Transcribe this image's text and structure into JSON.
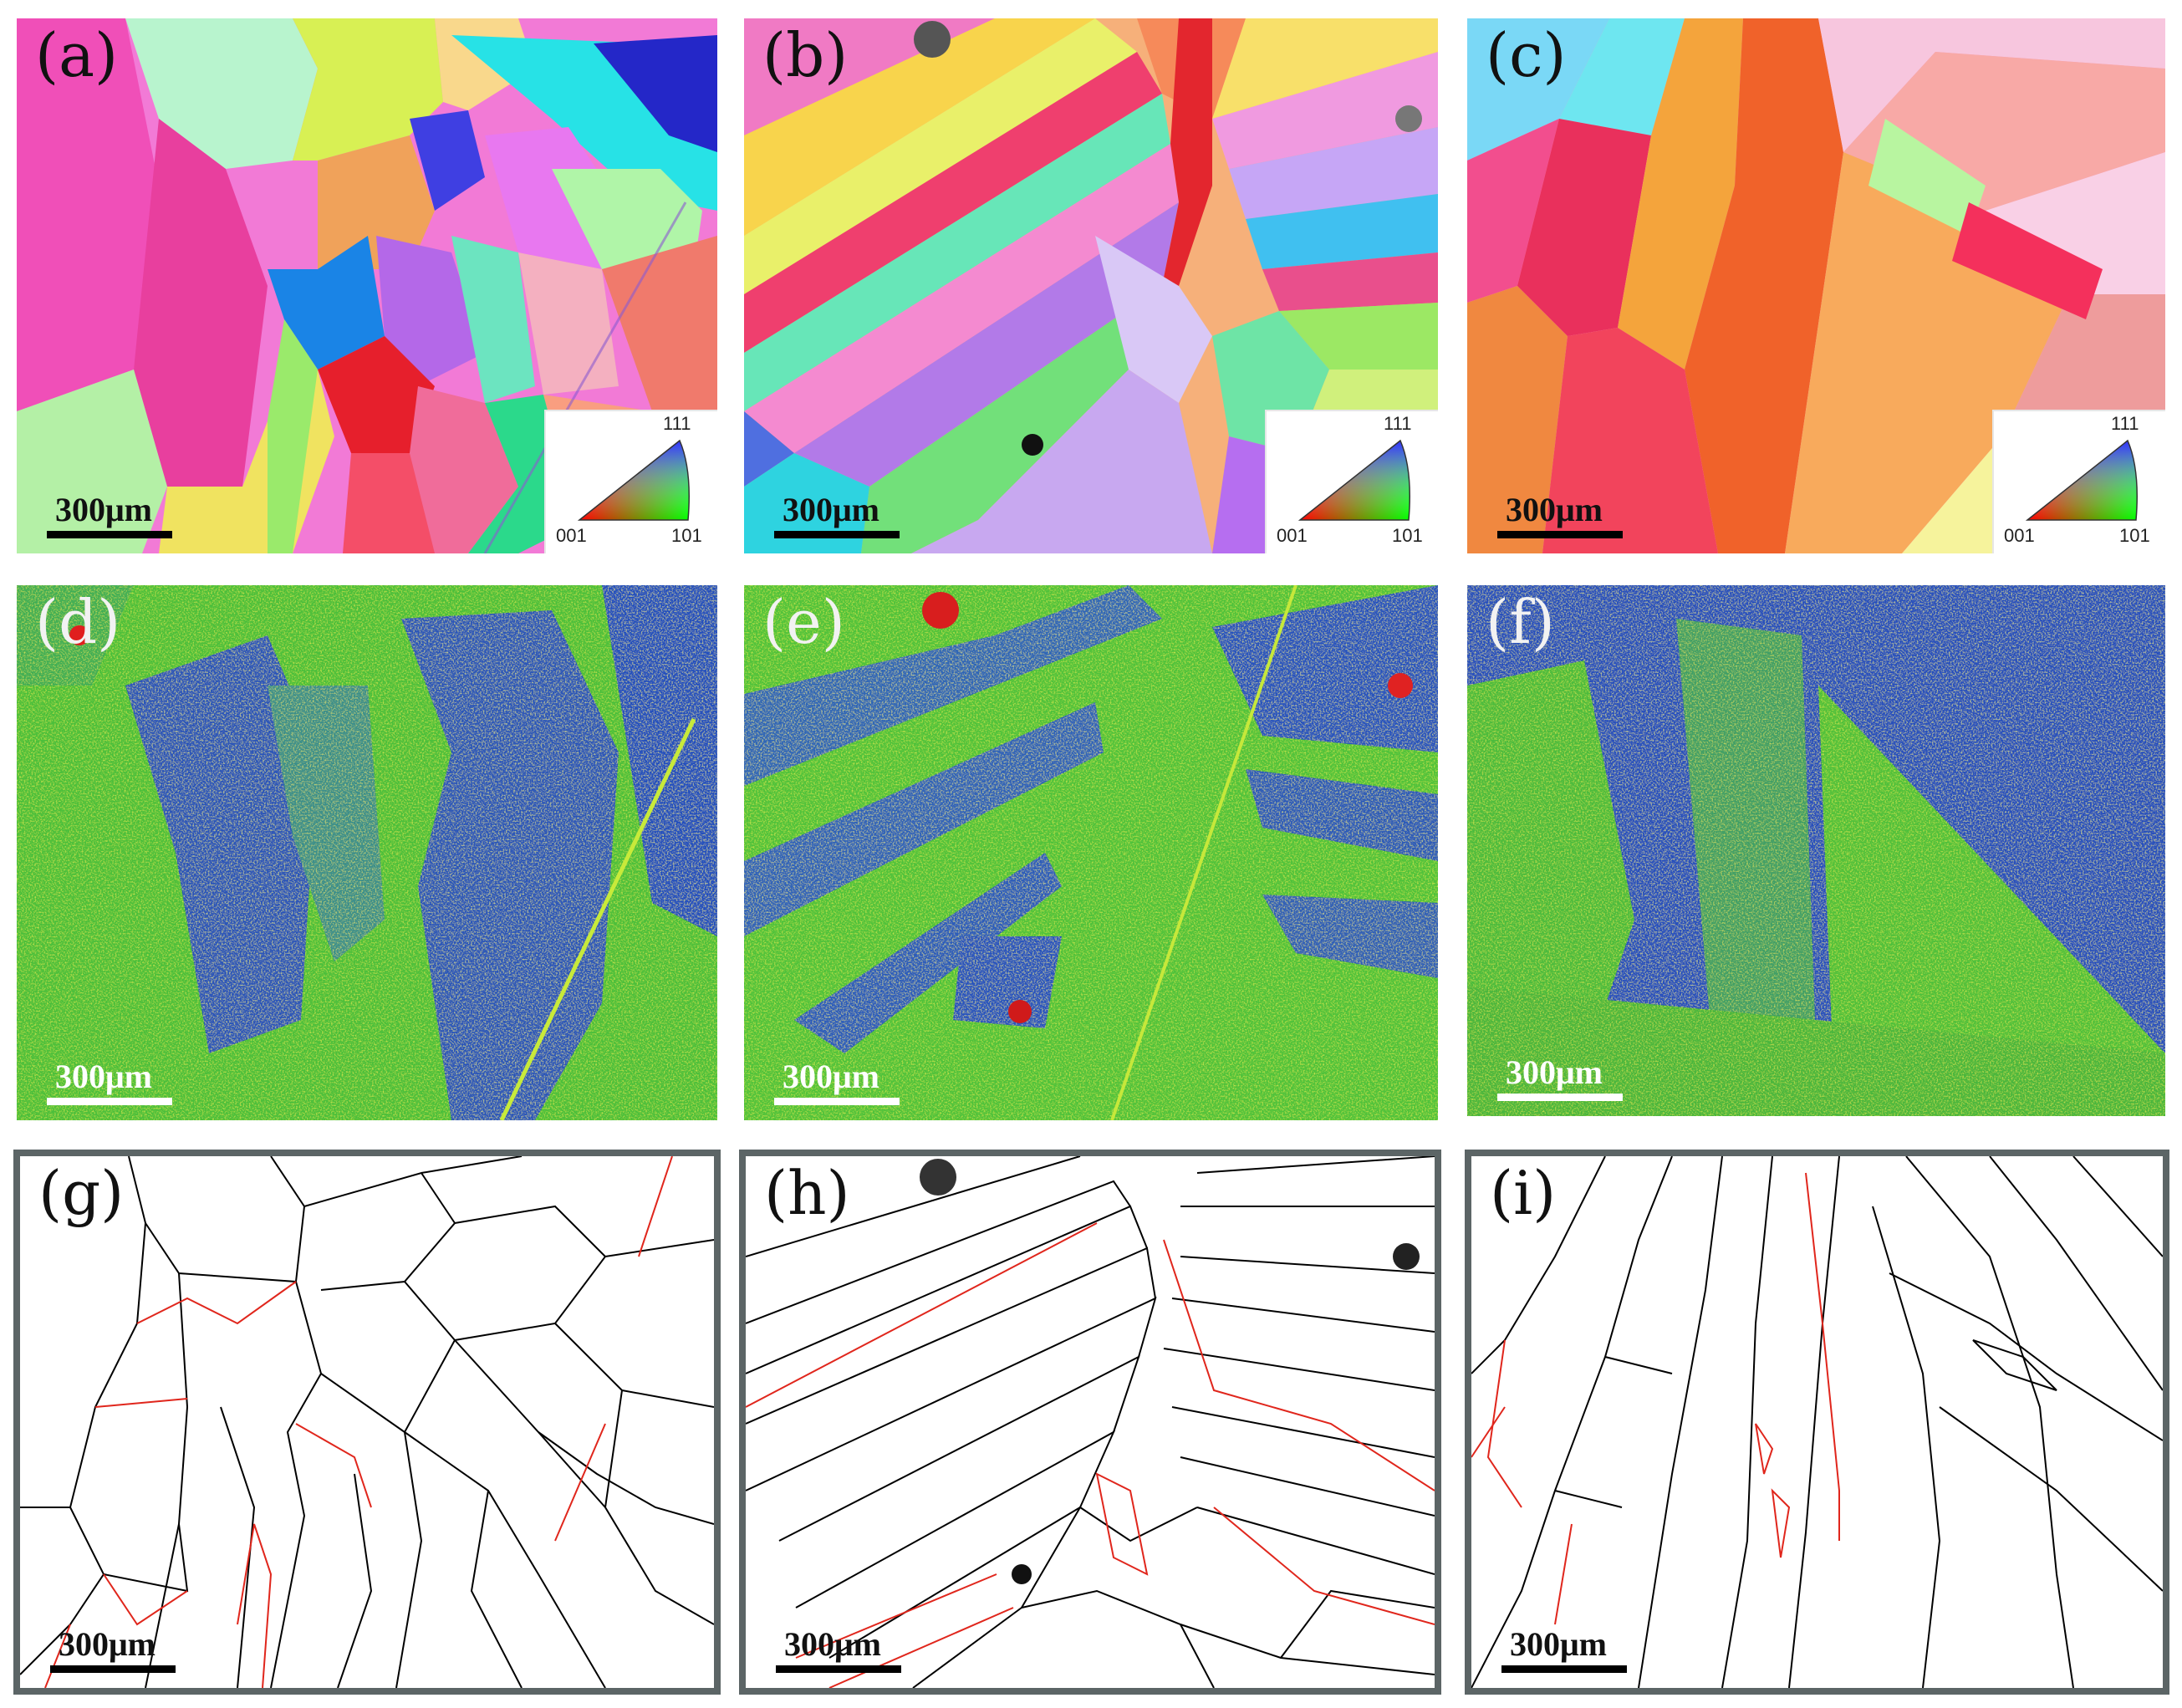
{
  "panels": {
    "a": {
      "label": "(a)",
      "scale": "300μm"
    },
    "b": {
      "label": "(b)",
      "scale": "300μm"
    },
    "c": {
      "label": "(c)",
      "scale": "300μm"
    },
    "d": {
      "label": "(d)",
      "scale": "300μm"
    },
    "e": {
      "label": "(e)",
      "scale": "300μm"
    },
    "f": {
      "label": "(f)",
      "scale": "300μm"
    },
    "g": {
      "label": "(g)",
      "scale": "300μm"
    },
    "h": {
      "label": "(h)",
      "scale": "300μm"
    },
    "i": {
      "label": "(i)",
      "scale": "300μm"
    }
  },
  "ipf_key": {
    "top": "111",
    "left": "001",
    "right": "101"
  },
  "colors": {
    "kam_low": "#1d49b8",
    "kam_mid": "#5bd12c",
    "kam_high": "#d8e820",
    "boundary_high_angle": "#000000",
    "boundary_low_angle": "#e0261c",
    "frame": "#5c6566"
  }
}
